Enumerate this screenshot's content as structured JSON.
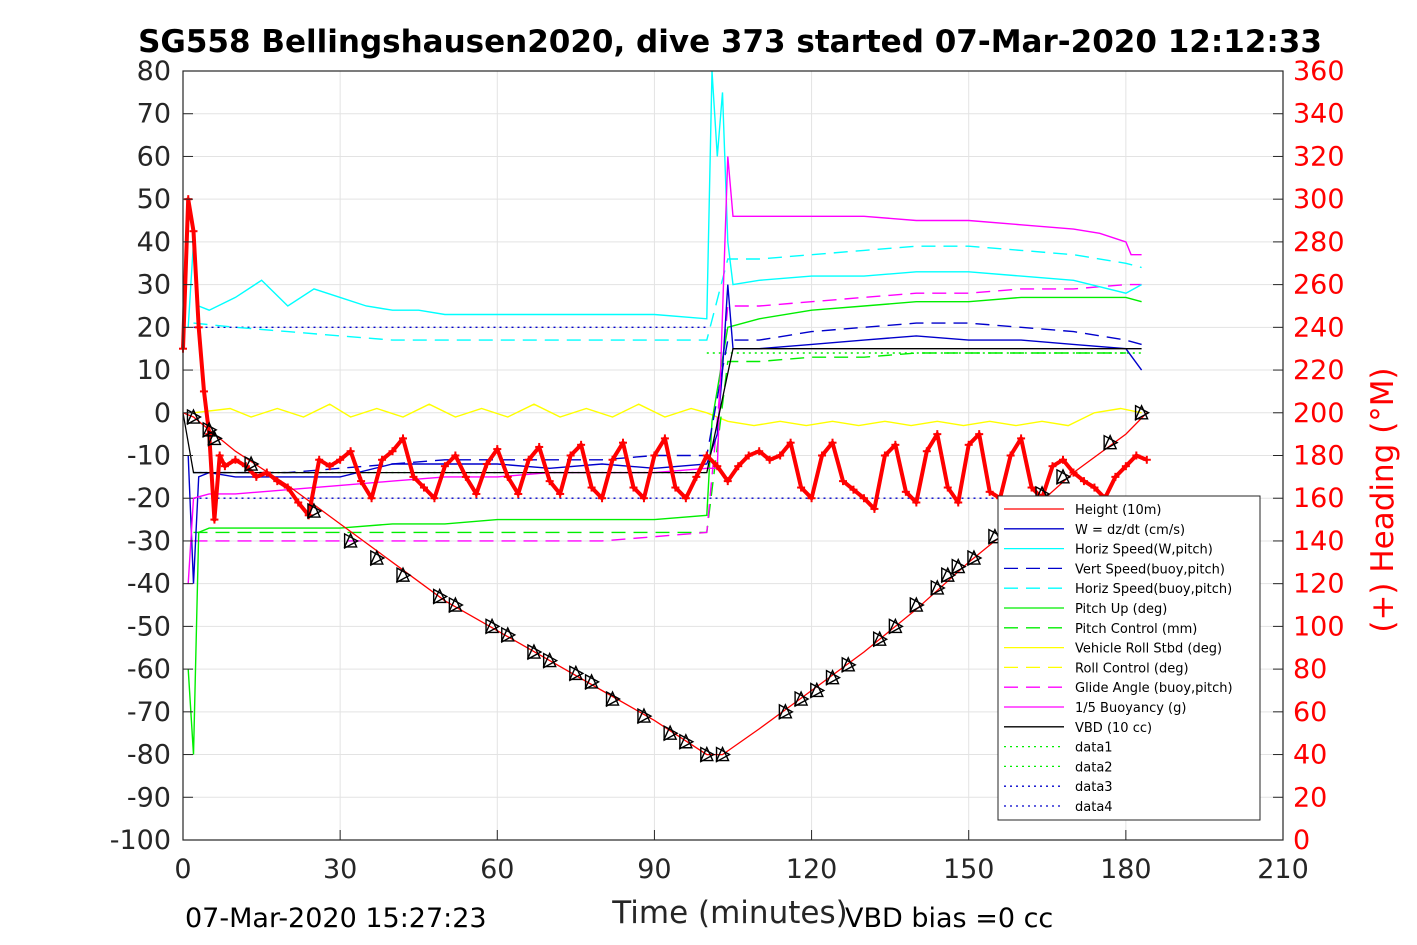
{
  "chart_data": {
    "type": "line",
    "title": "SG558 Bellingshausen2020, dive 373 started 07-Mar-2020 12:12:33",
    "xlabel": "Time (minutes)",
    "ylabel_right": "(+) Heading (°M)",
    "xlim": [
      0,
      210
    ],
    "ylim": [
      -100,
      80
    ],
    "ylim_right": [
      0,
      360
    ],
    "x_ticks": [
      "0",
      "30",
      "60",
      "90",
      "120",
      "150",
      "180",
      "210"
    ],
    "y_ticks": [
      "80",
      "70",
      "60",
      "50",
      "40",
      "30",
      "20",
      "10",
      "0",
      "-10",
      "-20",
      "-30",
      "-40",
      "-50",
      "-60",
      "-70",
      "-80",
      "-90",
      "-100"
    ],
    "y_ticks_right": [
      "360",
      "340",
      "320",
      "300",
      "280",
      "260",
      "240",
      "220",
      "200",
      "180",
      "160",
      "140",
      "120",
      "100",
      "80",
      "60",
      "40",
      "20",
      "0"
    ],
    "grid": true,
    "legend_position": "bottom-right",
    "footer_left": "07-Mar-2020 15:27:23",
    "footer_right": "VBD bias =0 cc",
    "colors": {
      "heading": "#ff0000",
      "height": "#ff0000",
      "w": "#0000cc",
      "horiz_speed": "#00ffff",
      "pitch": "#00ee00",
      "roll": "#ffff00",
      "glide": "#ff00ff",
      "vbd": "#000000"
    },
    "legend": [
      {
        "label": "Height (10m)",
        "color": "#ff0000",
        "dash": "solid"
      },
      {
        "label": "W = dz/dt (cm/s)",
        "color": "#0000cc",
        "dash": "solid"
      },
      {
        "label": "Horiz Speed(W,pitch)",
        "color": "#00ffff",
        "dash": "solid"
      },
      {
        "label": "Vert Speed(buoy,pitch)",
        "color": "#0000cc",
        "dash": "dashed"
      },
      {
        "label": "Horiz Speed(buoy,pitch)",
        "color": "#00ffff",
        "dash": "dashed"
      },
      {
        "label": "Pitch Up (deg)",
        "color": "#00ee00",
        "dash": "solid"
      },
      {
        "label": "Pitch Control (mm)",
        "color": "#00ee00",
        "dash": "dashed"
      },
      {
        "label": "Vehicle Roll Stbd (deg)",
        "color": "#ffff00",
        "dash": "solid"
      },
      {
        "label": "Roll Control (deg)",
        "color": "#ffff00",
        "dash": "dashed"
      },
      {
        "label": "Glide Angle (buoy,pitch)",
        "color": "#ff00ff",
        "dash": "dashed"
      },
      {
        "label": "1/5 Buoyancy (g)",
        "color": "#ff00ff",
        "dash": "solid"
      },
      {
        "label": "VBD (10 cc)",
        "color": "#000000",
        "dash": "solid"
      },
      {
        "label": "data1",
        "color": "#00ee00",
        "dash": "dotted"
      },
      {
        "label": "data2",
        "color": "#00ee00",
        "dash": "dotted"
      },
      {
        "label": "data3",
        "color": "#0000cc",
        "dash": "dotted"
      },
      {
        "label": "data4",
        "color": "#0000cc",
        "dash": "dotted"
      }
    ],
    "series": [
      {
        "key": "height",
        "name": "Height (10m)",
        "axis": "left",
        "x": [
          0,
          2,
          5,
          10,
          20,
          30,
          40,
          50,
          60,
          70,
          80,
          90,
          100,
          103,
          110,
          120,
          130,
          140,
          150,
          160,
          170,
          180,
          184
        ],
        "y": [
          0,
          -1,
          -4,
          -9,
          -17,
          -26,
          -35,
          -44,
          -51,
          -58,
          -65,
          -72,
          -80,
          -80,
          -74,
          -65,
          -56,
          -46,
          -35,
          -25,
          -14,
          -5,
          0
        ]
      },
      {
        "key": "w",
        "name": "W = dz/dt (cm/s)",
        "axis": "left",
        "x": [
          1,
          2,
          3,
          5,
          10,
          20,
          30,
          40,
          50,
          60,
          70,
          80,
          90,
          100,
          102,
          103,
          104,
          105,
          110,
          120,
          130,
          140,
          150,
          160,
          170,
          180,
          183
        ],
        "y": [
          -10,
          -40,
          -15,
          -14,
          -15,
          -15,
          -15,
          -12,
          -12,
          -12,
          -13,
          -12,
          -13,
          -12,
          -5,
          10,
          30,
          15,
          15,
          16,
          17,
          18,
          17,
          17,
          16,
          15,
          10
        ]
      },
      {
        "key": "horiz_speed",
        "name": "Horiz Speed(W,pitch)",
        "axis": "left",
        "x": [
          1,
          2,
          3,
          5,
          10,
          15,
          20,
          25,
          30,
          35,
          40,
          45,
          50,
          60,
          70,
          80,
          90,
          100,
          101,
          102,
          103,
          104,
          105,
          110,
          120,
          130,
          140,
          150,
          160,
          170,
          180,
          183
        ],
        "y": [
          20,
          40,
          25,
          24,
          27,
          31,
          25,
          29,
          27,
          25,
          24,
          24,
          23,
          23,
          23,
          23,
          23,
          22,
          80,
          60,
          75,
          40,
          30,
          31,
          32,
          32,
          33,
          33,
          32,
          31,
          28,
          30
        ]
      },
      {
        "key": "vert_speed_buoy",
        "name": "Vert Speed(buoy,pitch)",
        "axis": "left",
        "x": [
          2,
          10,
          20,
          30,
          40,
          50,
          60,
          70,
          80,
          90,
          100,
          104,
          110,
          120,
          130,
          140,
          150,
          160,
          170,
          180,
          183
        ],
        "y": [
          -14,
          -14,
          -14,
          -13,
          -12,
          -11,
          -11,
          -11,
          -11,
          -10,
          -10,
          17,
          17,
          19,
          20,
          21,
          21,
          20,
          19,
          17,
          16
        ]
      },
      {
        "key": "horiz_speed_buoy",
        "name": "Horiz Speed(buoy,pitch)",
        "axis": "left",
        "x": [
          2,
          10,
          20,
          30,
          40,
          50,
          60,
          70,
          80,
          90,
          100,
          104,
          110,
          120,
          130,
          140,
          150,
          160,
          170,
          180,
          183
        ],
        "y": [
          21,
          20,
          19,
          18,
          17,
          17,
          17,
          17,
          17,
          17,
          17,
          36,
          36,
          37,
          38,
          39,
          39,
          38,
          37,
          35,
          34
        ]
      },
      {
        "key": "pitch_up",
        "name": "Pitch Up (deg)",
        "axis": "left",
        "x": [
          1,
          2,
          3,
          5,
          10,
          20,
          30,
          40,
          50,
          60,
          70,
          80,
          90,
          100,
          101,
          104,
          110,
          120,
          130,
          140,
          150,
          160,
          170,
          180,
          183
        ],
        "y": [
          -60,
          -80,
          -28,
          -27,
          -27,
          -27,
          -27,
          -26,
          -26,
          -25,
          -25,
          -25,
          -25,
          -24,
          -2,
          20,
          22,
          24,
          25,
          26,
          26,
          27,
          27,
          27,
          26
        ]
      },
      {
        "key": "pitch_control",
        "name": "Pitch Control (mm)",
        "axis": "left",
        "x": [
          2,
          10,
          20,
          30,
          40,
          50,
          60,
          70,
          80,
          90,
          100,
          104,
          110,
          120,
          130,
          140,
          150,
          160,
          170,
          180
        ],
        "y": [
          -28,
          -28,
          -28,
          -28,
          -28,
          -28,
          -28,
          -28,
          -28,
          -28,
          -28,
          12,
          12,
          13,
          13,
          14,
          14,
          14,
          14,
          14
        ]
      },
      {
        "key": "roll",
        "name": "Vehicle Roll Stbd (deg)",
        "axis": "left",
        "x": [
          2,
          9,
          13,
          18,
          23,
          28,
          32,
          37,
          42,
          47,
          52,
          57,
          62,
          67,
          72,
          77,
          82,
          87,
          92,
          97,
          100,
          104,
          109,
          114,
          119,
          124,
          129,
          134,
          139,
          144,
          149,
          154,
          159,
          164,
          169,
          174,
          179,
          183
        ],
        "y": [
          0,
          1,
          -1,
          1,
          -1,
          2,
          -1,
          1,
          -1,
          2,
          -1,
          1,
          -1,
          2,
          -1,
          1,
          -1,
          2,
          -1,
          1,
          0,
          -2,
          -3,
          -2,
          -3,
          -2,
          -3,
          -2,
          -3,
          -2,
          -3,
          -2,
          -3,
          -2,
          -3,
          0,
          1,
          0
        ]
      },
      {
        "key": "glide_angle",
        "name": "Glide Angle (buoy,pitch)",
        "axis": "left",
        "x": [
          2,
          10,
          20,
          30,
          40,
          50,
          60,
          70,
          80,
          90,
          100,
          104,
          110,
          120,
          130,
          140,
          150,
          160,
          170,
          180,
          183
        ],
        "y": [
          -30,
          -30,
          -30,
          -30,
          -30,
          -30,
          -30,
          -30,
          -30,
          -29,
          -28,
          25,
          25,
          26,
          27,
          28,
          28,
          29,
          29,
          30,
          30
        ]
      },
      {
        "key": "buoyancy",
        "name": "1/5 Buoyancy (g)",
        "axis": "left",
        "x": [
          1,
          2,
          5,
          10,
          20,
          30,
          40,
          50,
          60,
          70,
          80,
          90,
          100,
          102,
          104,
          105,
          110,
          120,
          130,
          140,
          150,
          160,
          170,
          175,
          180,
          181,
          183
        ],
        "y": [
          -40,
          -20,
          -19,
          -19,
          -18,
          -17,
          -16,
          -15,
          -15,
          -14,
          -14,
          -14,
          -13,
          -13,
          60,
          46,
          46,
          46,
          46,
          45,
          45,
          44,
          43,
          42,
          40,
          37,
          37
        ]
      },
      {
        "key": "vbd",
        "name": "VBD (10 cc)",
        "axis": "left",
        "x": [
          0,
          2,
          100,
          105,
          183
        ],
        "y": [
          0,
          -14,
          -14,
          15,
          15
        ]
      },
      {
        "key": "heading",
        "name": "(+) Heading (°M)",
        "axis": "right",
        "x": [
          0,
          1,
          2,
          3,
          4,
          5,
          6,
          7,
          8,
          10,
          12,
          14,
          16,
          18,
          20,
          22,
          24,
          26,
          28,
          30,
          32,
          34,
          36,
          38,
          40,
          42,
          44,
          46,
          48,
          50,
          52,
          54,
          56,
          58,
          60,
          62,
          64,
          66,
          68,
          70,
          72,
          74,
          76,
          78,
          80,
          82,
          84,
          86,
          88,
          90,
          92,
          94,
          96,
          98,
          100,
          102,
          104,
          106,
          108,
          110,
          112,
          114,
          116,
          118,
          120,
          122,
          124,
          126,
          128,
          130,
          132,
          134,
          136,
          138,
          140,
          142,
          144,
          146,
          148,
          150,
          152,
          154,
          156,
          158,
          160,
          162,
          164,
          166,
          168,
          170,
          172,
          174,
          176,
          178,
          180,
          182,
          184
        ],
        "y": [
          230,
          300,
          285,
          240,
          210,
          190,
          150,
          180,
          175,
          178,
          175,
          170,
          172,
          168,
          165,
          158,
          152,
          178,
          175,
          178,
          182,
          168,
          160,
          178,
          182,
          188,
          170,
          165,
          160,
          175,
          180,
          170,
          162,
          176,
          183,
          170,
          162,
          178,
          184,
          168,
          162,
          180,
          185,
          165,
          160,
          178,
          186,
          165,
          160,
          180,
          188,
          165,
          160,
          170,
          180,
          175,
          168,
          175,
          180,
          182,
          178,
          180,
          186,
          165,
          160,
          180,
          186,
          168,
          164,
          160,
          155,
          180,
          185,
          163,
          158,
          182,
          190,
          165,
          158,
          185,
          190,
          163,
          160,
          180,
          188,
          165,
          160,
          175,
          178,
          172,
          168,
          165,
          160,
          170,
          175,
          180,
          178
        ]
      },
      {
        "key": "data1",
        "name": "data1",
        "axis": "left",
        "x": [
          2,
          100
        ],
        "y": [
          -14,
          -14
        ]
      },
      {
        "key": "data2",
        "name": "data2",
        "axis": "left",
        "x": [
          100,
          183
        ],
        "y": [
          14,
          14
        ]
      },
      {
        "key": "data3",
        "name": "data3",
        "axis": "left",
        "x": [
          2,
          100
        ],
        "y": [
          20,
          20
        ]
      },
      {
        "key": "data4",
        "name": "data4",
        "axis": "left",
        "x": [
          2,
          183
        ],
        "y": [
          -20,
          -20
        ]
      }
    ],
    "markers": {
      "shape": "triangle",
      "x": [
        2,
        5,
        6,
        13,
        25,
        32,
        37,
        42,
        49,
        52,
        59,
        62,
        67,
        70,
        75,
        78,
        82,
        88,
        93,
        96,
        100,
        103,
        115,
        118,
        121,
        124,
        127,
        133,
        136,
        140,
        144,
        146,
        148,
        151,
        155,
        159,
        164,
        168,
        177,
        183
      ],
      "y": [
        -1,
        -4,
        -6,
        -12,
        -23,
        -30,
        -34,
        -38,
        -43,
        -45,
        -50,
        -52,
        -56,
        -58,
        -61,
        -63,
        -67,
        -71,
        -75,
        -77,
        -80,
        -80,
        -70,
        -67,
        -65,
        -62,
        -59,
        -53,
        -50,
        -45,
        -41,
        -38,
        -36,
        -34,
        -29,
        -25,
        -19,
        -15,
        -7,
        0
      ]
    }
  }
}
